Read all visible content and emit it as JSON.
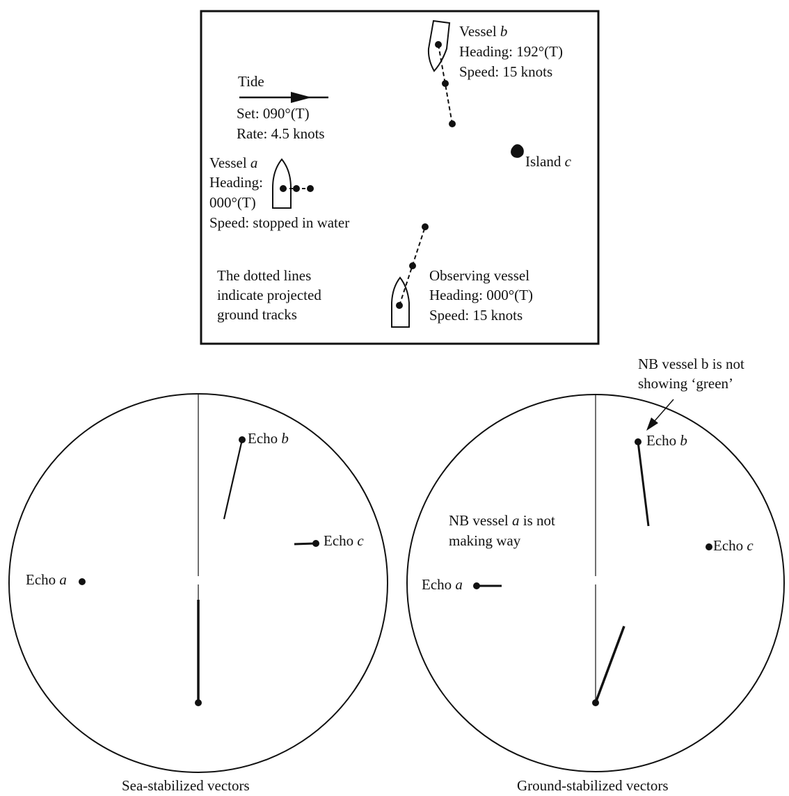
{
  "top_panel": {
    "tide": {
      "title": "Tide",
      "set": "Set: 090°(T)",
      "rate": "Rate: 4.5 knots"
    },
    "vessel_a": {
      "name": "Vessel ",
      "name_letter": "a",
      "heading_label": "Heading:",
      "heading_value": "000°(T)",
      "speed": "Speed: stopped in water"
    },
    "vessel_b": {
      "name": "Vessel ",
      "name_letter": "b",
      "heading": "Heading: 192°(T)",
      "speed": "Speed: 15 knots"
    },
    "island": {
      "name": "Island ",
      "name_letter": "c"
    },
    "observing_vessel": {
      "name": "Observing vessel",
      "heading": "Heading: 000°(T)",
      "speed": "Speed: 15 knots"
    },
    "note": {
      "line1": "The dotted lines",
      "line2": "indicate projected",
      "line3": "ground tracks"
    }
  },
  "sea_display": {
    "caption": "Sea-stabilized vectors",
    "echo_a": {
      "text": "Echo ",
      "letter": "a"
    },
    "echo_b": {
      "text": "Echo ",
      "letter": "b"
    },
    "echo_c": {
      "text": "Echo ",
      "letter": "c"
    }
  },
  "ground_display": {
    "caption": "Ground-stabilized vectors",
    "note_b": {
      "line1": "NB vessel b is not",
      "line2": "showing ‘green’"
    },
    "note_a": {
      "line1_prefix": "NB vessel ",
      "line1_letter": "a",
      "line1_suffix": " is not",
      "line2": "making way"
    },
    "echo_a": {
      "text": "Echo ",
      "letter": "a"
    },
    "echo_b": {
      "text": "Echo ",
      "letter": "b"
    },
    "echo_c": {
      "text": "Echo ",
      "letter": "c"
    }
  }
}
